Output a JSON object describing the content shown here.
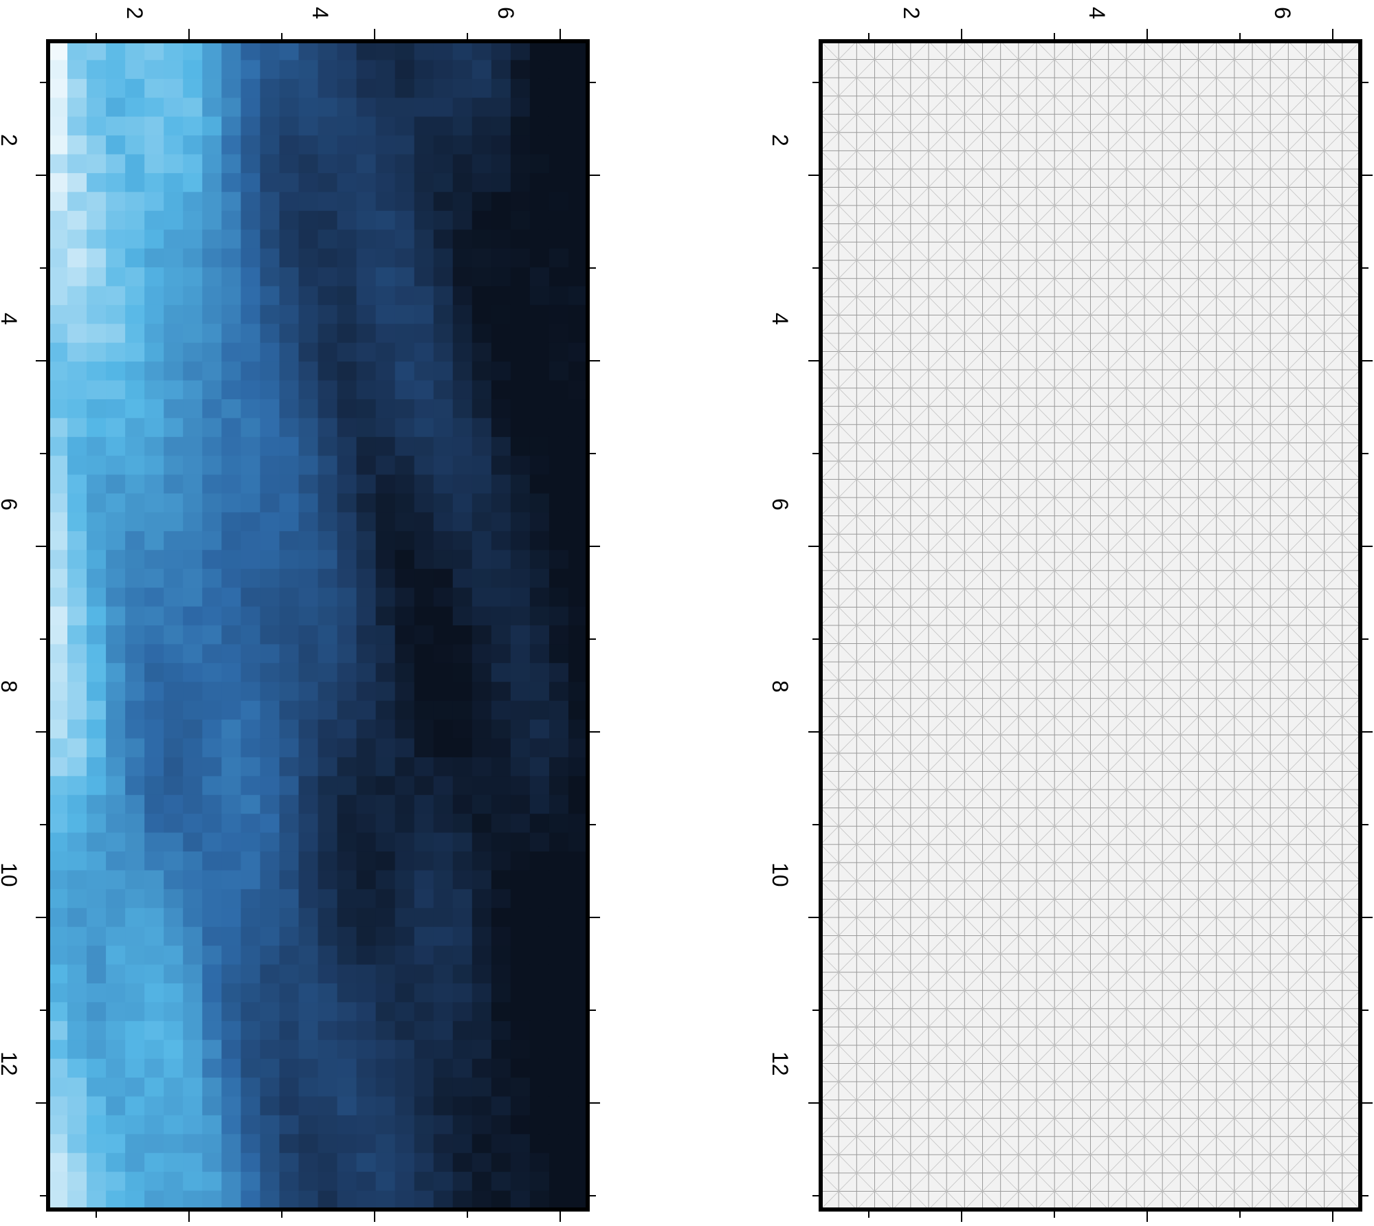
{
  "chart_data": [
    {
      "type": "heatmap",
      "panel": "left",
      "title": "",
      "xlabel": "",
      "ylabel": "",
      "x_ticks": [
        "2",
        "4",
        "6",
        "8",
        "10",
        "12"
      ],
      "y_ticks": [
        "2",
        "4",
        "6"
      ],
      "x_range": [
        0.0,
        13.0
      ],
      "y_range": [
        0.5,
        6.3
      ],
      "colormap": [
        "#ffffff",
        "#55b7e6",
        "#2e6aa8",
        "#1d3b64",
        "#0a1220"
      ],
      "grid": false,
      "values": [
        [
          0.0,
          0.22,
          0.55,
          0.75,
          0.9,
          1.0
        ],
        [
          0.05,
          0.3,
          0.58,
          0.82,
          0.95,
          1.0
        ],
        [
          0.08,
          0.35,
          0.55,
          0.75,
          0.92,
          1.0
        ],
        [
          0.18,
          0.4,
          0.6,
          0.82,
          0.96,
          1.0
        ],
        [
          0.22,
          0.42,
          0.62,
          0.85,
          0.97,
          1.0
        ],
        [
          0.15,
          0.38,
          0.58,
          0.8,
          0.95,
          1.0
        ],
        [
          0.05,
          0.3,
          0.55,
          0.78,
          0.94,
          1.0
        ]
      ]
    },
    {
      "type": "heatmap",
      "panel": "right",
      "title": "",
      "xlabel": "",
      "ylabel": "",
      "x_ticks": [
        "2",
        "4",
        "6",
        "8",
        "10",
        "12"
      ],
      "y_ticks": [
        "2",
        "4",
        "6"
      ],
      "x_range": [
        0.0,
        13.0
      ],
      "y_range": [
        0.5,
        6.3
      ],
      "fill": "#f2f2f2",
      "mesh_color": "#9a9a9a",
      "grid": true
    }
  ]
}
